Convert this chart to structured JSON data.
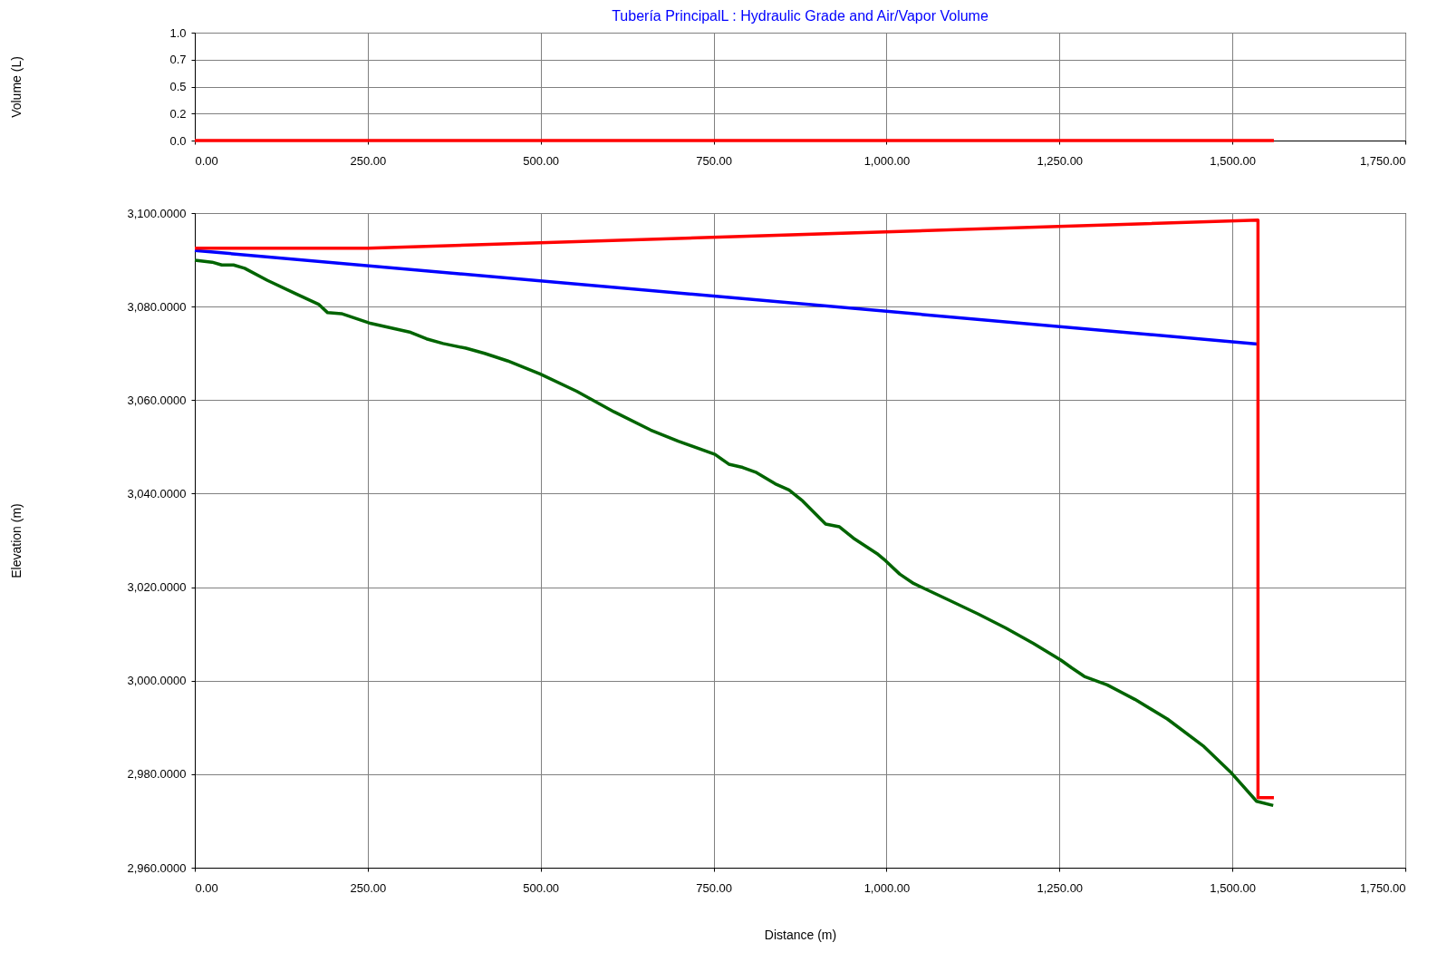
{
  "chart_data": [
    {
      "type": "line",
      "title": "Tubería PrincipalL : Hydraulic Grade and Air/Vapor Volume",
      "ylabel": "Volume (L)",
      "xlim": [
        0,
        1750
      ],
      "xticks": [
        {
          "value": 0,
          "label": "0.00"
        },
        {
          "value": 250,
          "label": "250.00"
        },
        {
          "value": 500,
          "label": "500.00"
        },
        {
          "value": 750,
          "label": "750.00"
        },
        {
          "value": 1000,
          "label": "1,000.00"
        },
        {
          "value": 1250,
          "label": "1,250.00"
        },
        {
          "value": 1500,
          "label": "1,500.00"
        },
        {
          "value": 1750,
          "label": "1,750.00"
        }
      ],
      "ylim": [
        0,
        1
      ],
      "yticks": [
        {
          "value": 0,
          "label": "0.0"
        },
        {
          "value": 0.25,
          "label": "0.2"
        },
        {
          "value": 0.5,
          "label": "0.5"
        },
        {
          "value": 0.75,
          "label": "0.7"
        },
        {
          "value": 1,
          "label": "1.0"
        }
      ],
      "grid": true,
      "series": [
        {
          "color": "#ff0000",
          "x": [
            0,
            1560
          ],
          "values": [
            0,
            0
          ]
        }
      ]
    },
    {
      "type": "line",
      "xlabel": "Distance (m)",
      "ylabel": "Elevation (m)",
      "xlim": [
        0,
        1750
      ],
      "xticks": [
        {
          "value": 0,
          "label": "0.00"
        },
        {
          "value": 250,
          "label": "250.00"
        },
        {
          "value": 500,
          "label": "500.00"
        },
        {
          "value": 750,
          "label": "750.00"
        },
        {
          "value": 1000,
          "label": "1,000.00"
        },
        {
          "value": 1250,
          "label": "1,250.00"
        },
        {
          "value": 1500,
          "label": "1,500.00"
        },
        {
          "value": 1750,
          "label": "1,750.00"
        }
      ],
      "ylim": [
        2960,
        3100
      ],
      "yticks": [
        {
          "value": 2960,
          "label": "2,960.0000"
        },
        {
          "value": 2980,
          "label": "2,980.0000"
        },
        {
          "value": 3000,
          "label": "3,000.0000"
        },
        {
          "value": 3020,
          "label": "3,020.0000"
        },
        {
          "value": 3040,
          "label": "3,040.0000"
        },
        {
          "value": 3060,
          "label": "3,060.0000"
        },
        {
          "value": 3080,
          "label": "3,080.0000"
        },
        {
          "value": 3100,
          "label": "3,100.0000"
        }
      ],
      "grid": true,
      "series": [
        {
          "color": "#006400",
          "x": [
            0,
            25,
            39,
            56,
            72,
            105,
            145,
            179,
            192,
            212,
            252,
            312,
            335,
            359,
            392,
            419,
            452,
            499,
            552,
            606,
            659,
            699,
            752,
            772,
            792,
            812,
            839,
            859,
            879,
            912,
            932,
            952,
            986,
            999,
            1019,
            1039,
            1092,
            1132,
            1172,
            1212,
            1252,
            1268,
            1286,
            1319,
            1359,
            1406,
            1459,
            1499,
            1535,
            1559
          ],
          "values": [
            3089.9,
            3089.5,
            3088.9,
            3088.9,
            3088.2,
            3085.6,
            3082.8,
            3080.5,
            3078.7,
            3078.5,
            3076.5,
            3074.5,
            3073.1,
            3072.1,
            3071.1,
            3070.0,
            3068.4,
            3065.6,
            3061.9,
            3057.5,
            3053.6,
            3051.2,
            3048.4,
            3046.3,
            3045.6,
            3044.5,
            3042.1,
            3040.8,
            3038.4,
            3033.5,
            3032.9,
            3030.5,
            3027.2,
            3025.6,
            3022.8,
            3020.8,
            3017.1,
            3014.3,
            3011.3,
            3008.0,
            3004.4,
            3002.7,
            3000.9,
            2999.1,
            2996.0,
            2991.8,
            2985.9,
            2980.2,
            2974.2,
            2973.3
          ]
        },
        {
          "color": "#0000ff",
          "x": [
            0,
            1537
          ],
          "values": [
            3092,
            3072
          ]
        },
        {
          "color": "#ff0000",
          "x": [
            0,
            250,
            1537,
            1537,
            1560
          ],
          "values": [
            3092.5,
            3092.5,
            3098.5,
            2975,
            2975
          ]
        }
      ]
    }
  ]
}
